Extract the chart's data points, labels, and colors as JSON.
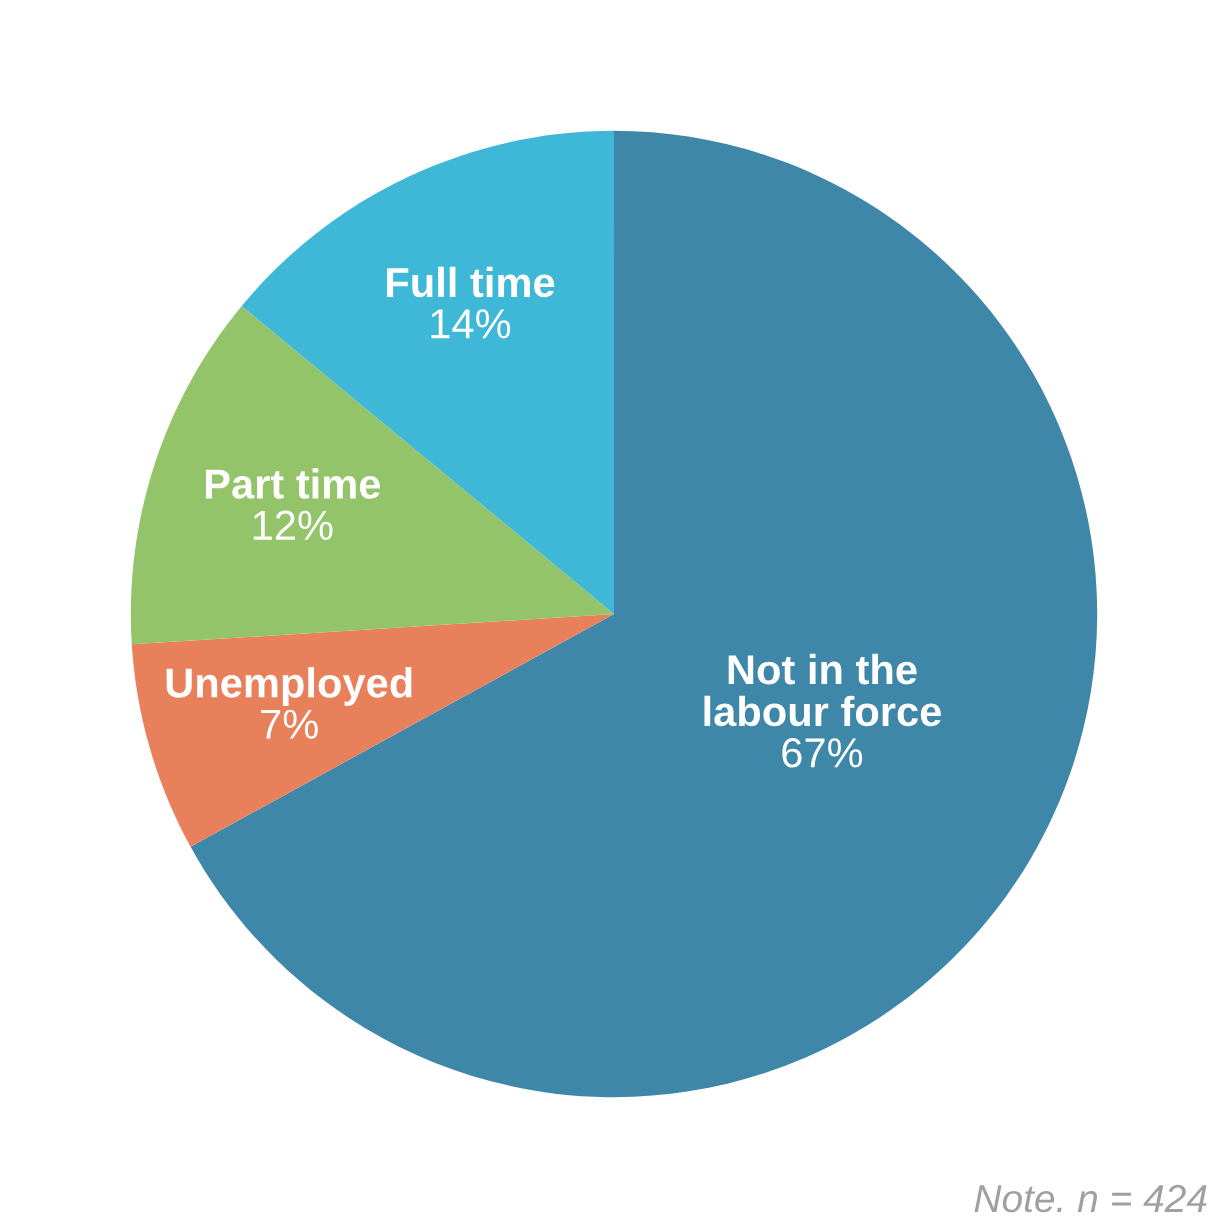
{
  "chart_data": {
    "type": "pie",
    "categories": [
      "Not in the\nlabour force",
      "Unemployed",
      "Part time",
      "Full time"
    ],
    "values": [
      67,
      7,
      12,
      14
    ],
    "value_labels": [
      "67%",
      "7%",
      "12%",
      "14%"
    ],
    "colors": [
      "#3f87a8",
      "#e8805c",
      "#93c46a",
      "#3eb8d6"
    ],
    "annotations": [
      "Note. n = 424"
    ],
    "legend": false
  }
}
